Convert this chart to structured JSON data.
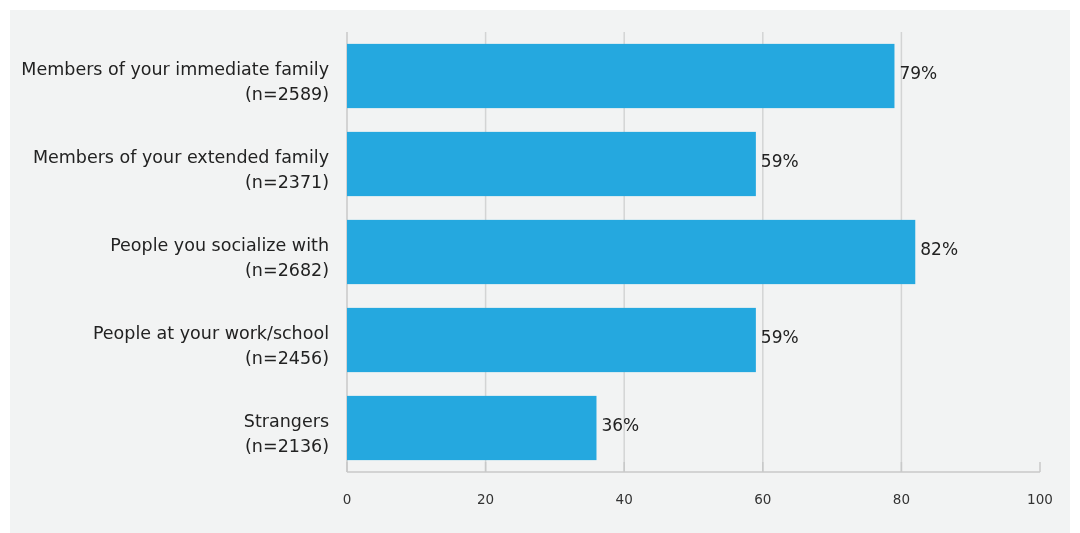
{
  "chart_data": {
    "type": "bar",
    "orientation": "horizontal",
    "categories": [
      "Members of your immediate family\n(n=2589)",
      "Members of your extended family\n(n=2371)",
      "People you socialize with\n(n=2682)",
      "People at your work/school\n(n=2456)",
      "Strangers\n(n=2136)"
    ],
    "values": [
      79,
      59,
      82,
      59,
      36
    ],
    "color": "#25a8df",
    "value_labels": [
      "79%",
      "59%",
      "82%",
      "59%",
      "36%"
    ],
    "xlim": [
      0,
      100
    ],
    "xticks": [
      0,
      20,
      40,
      60,
      80,
      100
    ],
    "grid": "x"
  }
}
